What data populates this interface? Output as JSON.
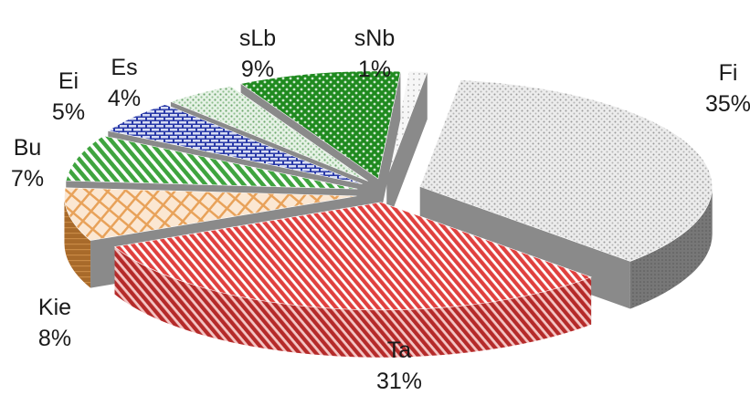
{
  "chart_data": {
    "type": "pie",
    "style": "3d exploded",
    "title": "",
    "slices": [
      {
        "label": "Fi",
        "value": 35,
        "display": "35%",
        "color": "#d9d9d9",
        "pattern": "dots"
      },
      {
        "label": "Ta",
        "value": 31,
        "display": "31%",
        "color": "#e0413f",
        "pattern": "diagonal-stripes"
      },
      {
        "label": "Kie",
        "value": 8,
        "display": "8%",
        "color": "#e8a25a",
        "pattern": "weave"
      },
      {
        "label": "Bu",
        "value": 7,
        "display": "7%",
        "color": "#3fa43f",
        "pattern": "diagonal-stripes"
      },
      {
        "label": "Ei",
        "value": 5,
        "display": "5%",
        "color": "#2a3aa8",
        "pattern": "bricks"
      },
      {
        "label": "Es",
        "value": 4,
        "display": "4%",
        "color": "#b8d8b8",
        "pattern": "dots"
      },
      {
        "label": "sLb",
        "value": 9,
        "display": "9%",
        "color": "#1f8a1f",
        "pattern": "checker"
      },
      {
        "label": "sNb",
        "value": 1,
        "display": "1%",
        "color": "#f2f2f2",
        "pattern": "dots"
      }
    ]
  }
}
